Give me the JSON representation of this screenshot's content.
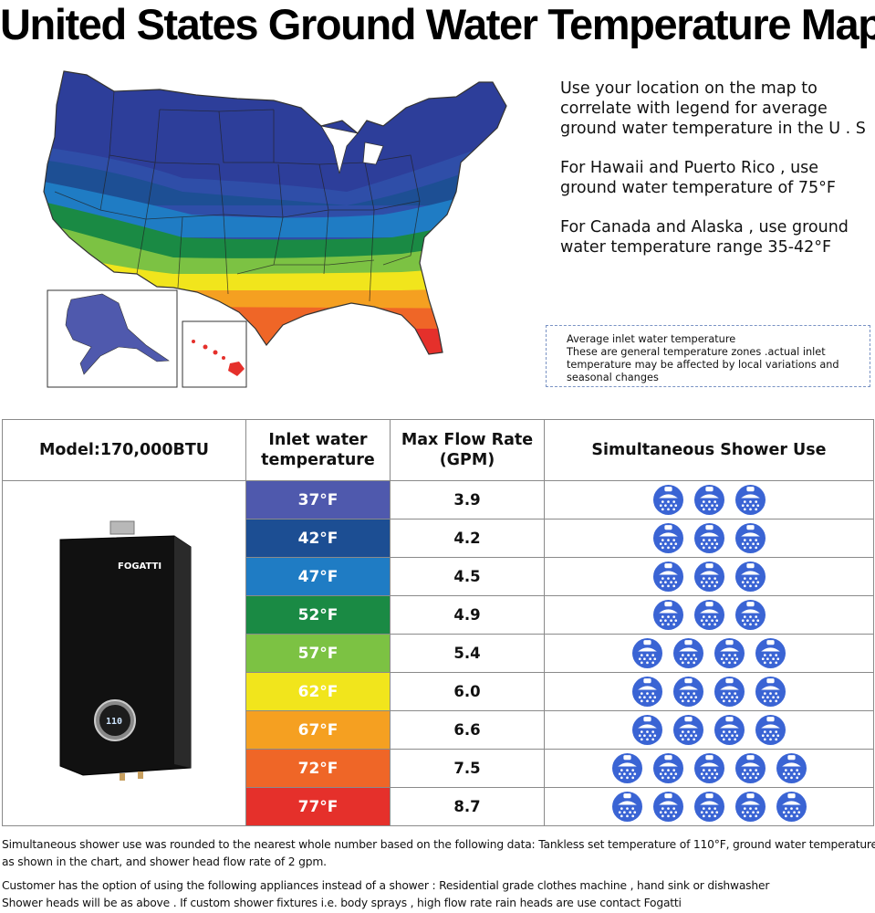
{
  "title": "United States Ground Water Temperature Map",
  "info": {
    "p1": "Use your location on the map to correlate with legend for average ground water temperature in the U . S",
    "p2": "For Hawaii and Puerto Rico , use ground water temperature of 75°F",
    "p3": "For Canada and Alaska , use ground water temperature range 35-42°F"
  },
  "legend_note": {
    "line1": "Average inlet water temperature",
    "line2": "These are general temperature zones .actual inlet temperature may be affected by local variations and seasonal changes"
  },
  "table": {
    "model_label": "Model:170,000BTU",
    "header_inlet": "Inlet water temperature",
    "header_flow": "Max Flow Rate (GPM)",
    "header_shower": "Simultaneous Shower Use",
    "product_brand": "FOGATTI",
    "product_display": "110",
    "rows": [
      {
        "temp": "37°F",
        "flow": "3.9",
        "showers": 3,
        "color": "#4f59ad"
      },
      {
        "temp": "42°F",
        "flow": "4.2",
        "showers": 3,
        "color": "#1c4e93"
      },
      {
        "temp": "47°F",
        "flow": "4.5",
        "showers": 3,
        "color": "#1f7cc4"
      },
      {
        "temp": "52°F",
        "flow": "4.9",
        "showers": 3,
        "color": "#1a8a44"
      },
      {
        "temp": "57°F",
        "flow": "5.4",
        "showers": 4,
        "color": "#7cc243"
      },
      {
        "temp": "62°F",
        "flow": "6.0",
        "showers": 4,
        "color": "#f1e51c"
      },
      {
        "temp": "67°F",
        "flow": "6.6",
        "showers": 4,
        "color": "#f5a021"
      },
      {
        "temp": "72°F",
        "flow": "7.5",
        "showers": 5,
        "color": "#ef6627"
      },
      {
        "temp": "77°F",
        "flow": "8.7",
        "showers": 5,
        "color": "#e5302b"
      }
    ]
  },
  "notes": {
    "line1": "Simultaneous shower use was rounded to the nearest whole number based on the following data: Tankless set temperature of 110°F, ground water temperature",
    "line2": "as shown in the chart, and shower head flow rate of 2 gpm.",
    "line3": "Customer has the option of using the following appliances instead of a shower : Residential grade clothes machine , hand sink or dishwasher",
    "line4": "Shower heads will be as above . If custom shower fixtures i.e. body sprays , high flow rate rain heads are use contact Fogatti"
  },
  "colors": {
    "shower_icon": "#3a64d4"
  }
}
